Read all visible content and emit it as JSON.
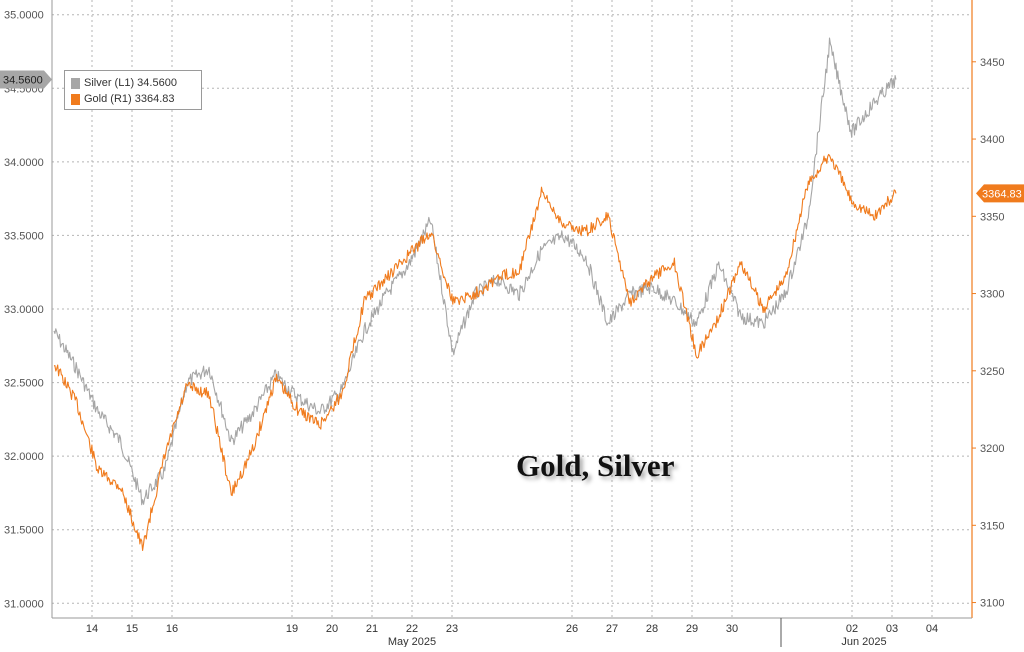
{
  "chart_data": {
    "type": "line",
    "title": "Gold, Silver",
    "x_day_labels": [
      "14",
      "15",
      "16",
      "19",
      "20",
      "21",
      "22",
      "23",
      "26",
      "27",
      "28",
      "29",
      "30",
      "02",
      "03",
      "04"
    ],
    "x_month_labels": [
      "May 2025",
      "Jun 2025"
    ],
    "left_axis": {
      "ticks": [
        "31.0000",
        "31.5000",
        "32.0000",
        "32.5000",
        "33.0000",
        "33.5000",
        "34.0000",
        "34.5000",
        "35.0000"
      ],
      "ylim": [
        30.9,
        35.1
      ]
    },
    "right_axis": {
      "ticks": [
        "3100",
        "3150",
        "3200",
        "3250",
        "3300",
        "3350",
        "3400",
        "3450"
      ],
      "ylim": [
        3090,
        3490
      ]
    },
    "grid": true,
    "legend_position": "top-left",
    "series": [
      {
        "name": "Silver",
        "axis": "L1",
        "color": "#a6a6a6",
        "last_value": "34.5600",
        "x": [
          "May 13",
          "May 14",
          "May 14",
          "May 14",
          "May 15",
          "May 15",
          "May 15",
          "May 16",
          "May 16",
          "May 16",
          "May 19",
          "May 19",
          "May 20",
          "May 20",
          "May 20",
          "May 21",
          "May 21",
          "May 22",
          "May 22",
          "May 22",
          "May 23",
          "May 23",
          "May 23",
          "May 26",
          "May 26",
          "May 27",
          "May 27",
          "May 28",
          "May 28",
          "May 29",
          "May 29",
          "May 30",
          "May 30",
          "Jun 02",
          "Jun 02",
          "Jun 02",
          "Jun 03",
          "Jun 03",
          "Jun 03"
        ],
        "y": [
          32.85,
          32.6,
          32.3,
          32.1,
          31.7,
          31.9,
          32.5,
          32.6,
          32.1,
          32.3,
          32.55,
          32.4,
          32.3,
          32.45,
          32.85,
          33.1,
          33.3,
          33.6,
          32.7,
          33.1,
          33.2,
          33.1,
          33.4,
          33.5,
          33.35,
          32.9,
          33.1,
          33.15,
          33.05,
          32.9,
          33.3,
          32.95,
          32.9,
          33.1,
          33.6,
          34.8,
          34.2,
          34.4,
          34.56
        ]
      },
      {
        "name": "Gold",
        "axis": "R1",
        "color": "#f07b1d",
        "last_value": "3364.83",
        "x": [
          "May 13",
          "May 14",
          "May 14",
          "May 14",
          "May 15",
          "May 15",
          "May 15",
          "May 16",
          "May 16",
          "May 16",
          "May 19",
          "May 19",
          "May 20",
          "May 20",
          "May 20",
          "May 21",
          "May 21",
          "May 22",
          "May 22",
          "May 22",
          "May 23",
          "May 23",
          "May 23",
          "May 26",
          "May 26",
          "May 27",
          "May 27",
          "May 28",
          "May 28",
          "May 29",
          "May 29",
          "May 30",
          "May 30",
          "Jun 02",
          "Jun 02",
          "Jun 02",
          "Jun 03",
          "Jun 03",
          "Jun 03"
        ],
        "y": [
          3255,
          3230,
          3185,
          3175,
          3135,
          3195,
          3240,
          3235,
          3170,
          3200,
          3245,
          3225,
          3215,
          3235,
          3295,
          3310,
          3325,
          3340,
          3295,
          3300,
          3310,
          3315,
          3365,
          3345,
          3340,
          3350,
          3295,
          3310,
          3320,
          3260,
          3285,
          3320,
          3290,
          3310,
          3370,
          3390,
          3360,
          3350,
          3364.83
        ]
      }
    ]
  },
  "legend": [
    {
      "label": "Silver (L1) 34.5600",
      "color": "#a6a6a6"
    },
    {
      "label": "Gold  (R1) 3364.83",
      "color": "#f07b1d"
    }
  ],
  "left_last_tag": "34.5600",
  "right_last_tag": "3364.83"
}
